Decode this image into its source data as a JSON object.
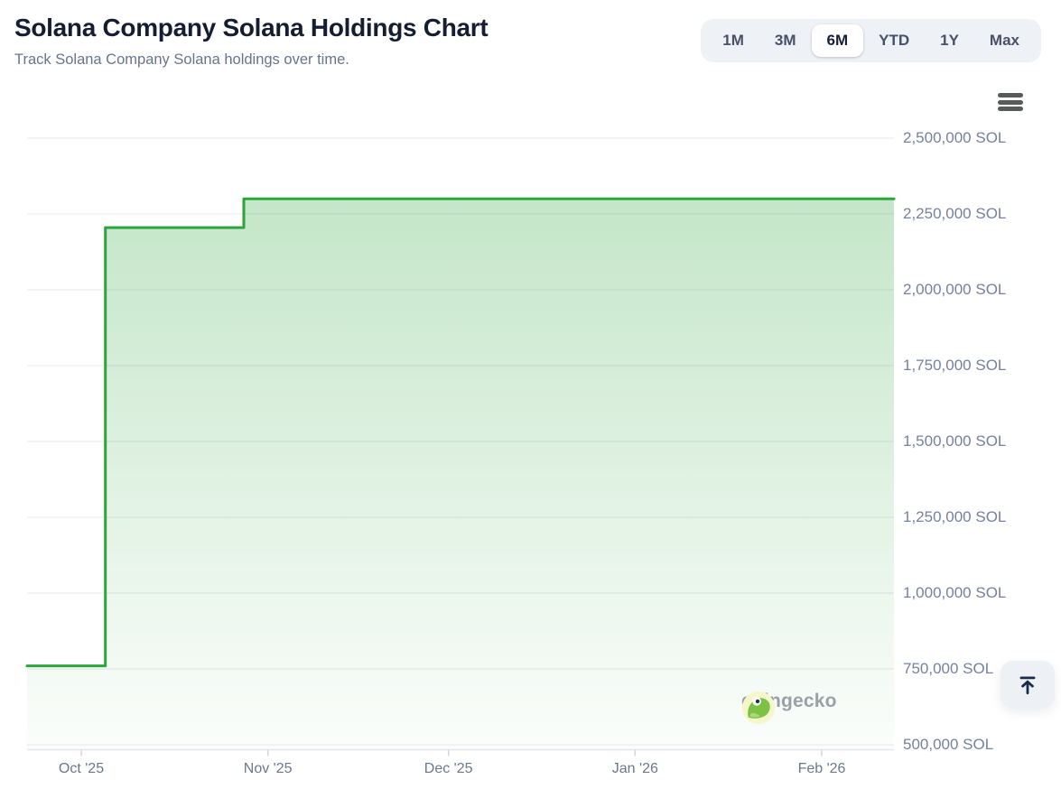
{
  "header": {
    "title": "Solana Company Solana Holdings Chart",
    "subtitle": "Track Solana Company Solana holdings over time."
  },
  "ranges": {
    "selected": "6M",
    "buttons": [
      {
        "label": "1M"
      },
      {
        "label": "3M"
      },
      {
        "label": "6M"
      },
      {
        "label": "YTD"
      },
      {
        "label": "1Y"
      },
      {
        "label": "Max"
      }
    ]
  },
  "icons": {
    "chart_menu": "hamburger-menu-icon",
    "scroll_to_top": "arrow-up-to-line-icon",
    "watermark_logo": "coingecko-gecko-icon"
  },
  "watermark": {
    "text": "coingecko"
  },
  "colors": {
    "line": "#2ca53c",
    "fill_top": "rgba(44,165,60,0.28)",
    "fill_bottom": "rgba(44,165,60,0.02)",
    "grid": "#eef0f4",
    "axis_line": "#e2e6eb",
    "tick": "#d3d8de",
    "title_text": "#141d31",
    "muted_text": "#66758f",
    "axis_label_text": "#75829e"
  },
  "chart_data": {
    "type": "area",
    "line_style": "step",
    "title": "Solana Company Solana Holdings",
    "unit": "SOL",
    "legend": "none",
    "grid": "horizontal",
    "ylim": [
      500000,
      2500000
    ],
    "x_range": [
      "2025-09-22",
      "2026-02-13"
    ],
    "series": [
      {
        "name": "Solana Holdings (SOL)",
        "points": [
          {
            "date": "2025-09-22",
            "value": 760000
          },
          {
            "date": "2025-10-05",
            "value": 760000
          },
          {
            "date": "2025-10-05",
            "value": 2205000
          },
          {
            "date": "2025-10-28",
            "value": 2205000
          },
          {
            "date": "2025-10-28",
            "value": 2300000
          },
          {
            "date": "2026-02-13",
            "value": 2300000
          }
        ]
      }
    ],
    "y_ticks": [
      {
        "value": 2500000,
        "label": "2,500,000 SOL"
      },
      {
        "value": 2250000,
        "label": "2,250,000 SOL"
      },
      {
        "value": 2000000,
        "label": "2,000,000 SOL"
      },
      {
        "value": 1750000,
        "label": "1,750,000 SOL"
      },
      {
        "value": 1500000,
        "label": "1,500,000 SOL"
      },
      {
        "value": 1250000,
        "label": "1,250,000 SOL"
      },
      {
        "value": 1000000,
        "label": "1,000,000 SOL"
      },
      {
        "value": 750000,
        "label": "750,000 SOL"
      },
      {
        "value": 500000,
        "label": "500,000 SOL"
      }
    ],
    "x_ticks": [
      {
        "date": "2025-10-01",
        "label": "Oct '25"
      },
      {
        "date": "2025-11-01",
        "label": "Nov '25"
      },
      {
        "date": "2025-12-01",
        "label": "Dec '25"
      },
      {
        "date": "2026-01-01",
        "label": "Jan '26"
      },
      {
        "date": "2026-02-01",
        "label": "Feb '26"
      }
    ]
  }
}
